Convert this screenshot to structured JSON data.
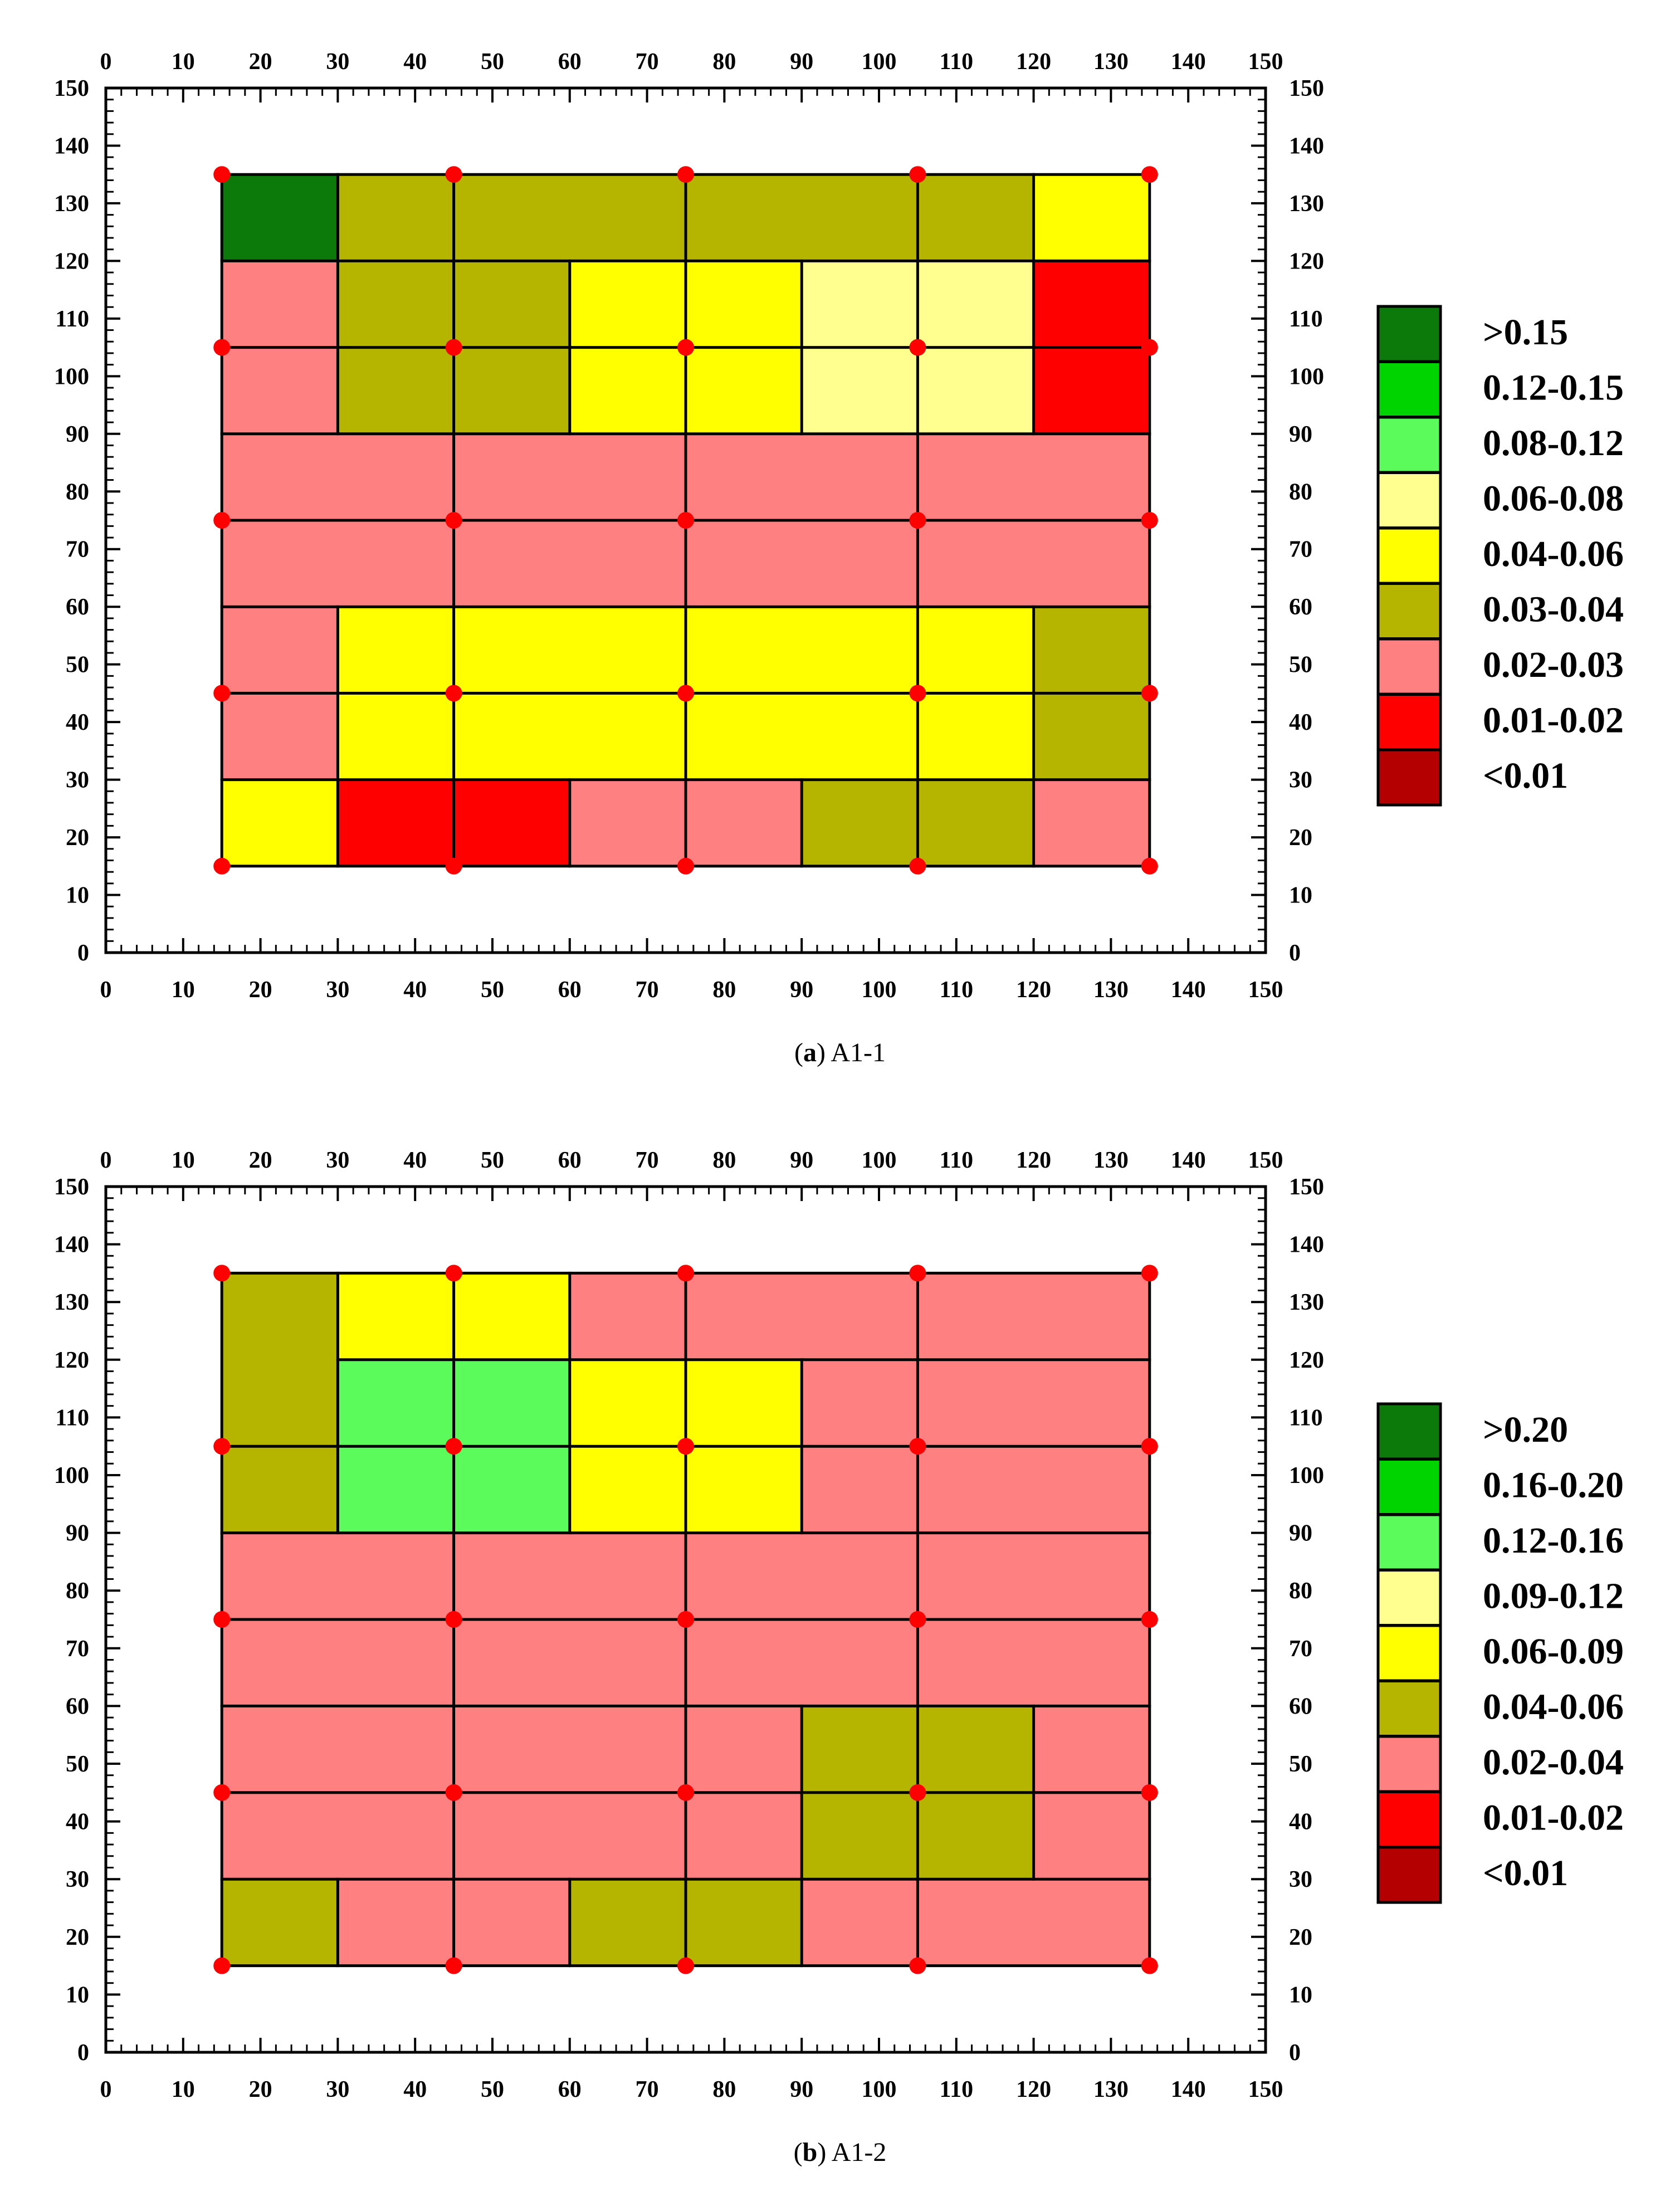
{
  "panels": [
    {
      "caption_letter": "a",
      "caption_text": "A1-1",
      "legend": [
        {
          "label": ">0.15",
          "color": "#0b7a0b"
        },
        {
          "label": "0.12-0.15",
          "color": "#00d400"
        },
        {
          "label": "0.08-0.12",
          "color": "#5cfb5c"
        },
        {
          "label": "0.06-0.08",
          "color": "#ffff8f"
        },
        {
          "label": "0.04-0.06",
          "color": "#ffff00"
        },
        {
          "label": "0.03-0.04",
          "color": "#b5b500"
        },
        {
          "label": "0.02-0.03",
          "color": "#ff8080"
        },
        {
          "label": "0.01-0.02",
          "color": "#ff0000"
        },
        {
          "label": "<0.01",
          "color": "#b40000"
        }
      ]
    },
    {
      "caption_letter": "b",
      "caption_text": "A1-2",
      "legend": [
        {
          "label": ">0.20",
          "color": "#0b7a0b"
        },
        {
          "label": "0.16-0.20",
          "color": "#00d400"
        },
        {
          "label": "0.12-0.16",
          "color": "#5cfb5c"
        },
        {
          "label": "0.09-0.12",
          "color": "#ffff8f"
        },
        {
          "label": "0.06-0.09",
          "color": "#ffff00"
        },
        {
          "label": "0.04-0.06",
          "color": "#b5b500"
        },
        {
          "label": "0.02-0.04",
          "color": "#ff8080"
        },
        {
          "label": "0.01-0.02",
          "color": "#ff0000"
        },
        {
          "label": "<0.01",
          "color": "#b40000"
        }
      ]
    }
  ],
  "chart_data": [
    {
      "type": "heatmap",
      "title": "",
      "xlim": [
        0,
        150
      ],
      "ylim": [
        0,
        150
      ],
      "x_ticks": [
        0,
        10,
        20,
        30,
        40,
        50,
        60,
        70,
        80,
        90,
        100,
        110,
        120,
        130,
        140,
        150
      ],
      "y_ticks": [
        0,
        10,
        20,
        30,
        40,
        50,
        60,
        70,
        80,
        90,
        100,
        110,
        120,
        130,
        140,
        150
      ],
      "axes_on_all_sides": true,
      "grid": false,
      "legend_position": "right",
      "points": [
        [
          15,
          135
        ],
        [
          45,
          135
        ],
        [
          75,
          135
        ],
        [
          105,
          135
        ],
        [
          135,
          135
        ],
        [
          15,
          105
        ],
        [
          45,
          105
        ],
        [
          75,
          105
        ],
        [
          105,
          105
        ],
        [
          135,
          105
        ],
        [
          15,
          75
        ],
        [
          45,
          75
        ],
        [
          75,
          75
        ],
        [
          105,
          75
        ],
        [
          135,
          75
        ],
        [
          15,
          45
        ],
        [
          45,
          45
        ],
        [
          75,
          45
        ],
        [
          105,
          45
        ],
        [
          135,
          45
        ],
        [
          15,
          15
        ],
        [
          45,
          15
        ],
        [
          75,
          15
        ],
        [
          105,
          15
        ],
        [
          135,
          15
        ]
      ],
      "cells": [
        {
          "x": [
            15,
            30
          ],
          "y": [
            120,
            135
          ],
          "class": ">0.15"
        },
        {
          "x": [
            30,
            120
          ],
          "y": [
            120,
            135
          ],
          "class": "0.03-0.04"
        },
        {
          "x": [
            120,
            135
          ],
          "y": [
            120,
            135
          ],
          "class": "0.04-0.06"
        },
        {
          "x": [
            15,
            30
          ],
          "y": [
            90,
            120
          ],
          "class": "0.02-0.03"
        },
        {
          "x": [
            30,
            60
          ],
          "y": [
            90,
            120
          ],
          "class": "0.03-0.04"
        },
        {
          "x": [
            60,
            90
          ],
          "y": [
            90,
            120
          ],
          "class": "0.04-0.06"
        },
        {
          "x": [
            90,
            120
          ],
          "y": [
            90,
            120
          ],
          "class": "0.06-0.08"
        },
        {
          "x": [
            120,
            135
          ],
          "y": [
            90,
            120
          ],
          "class": "0.01-0.02"
        },
        {
          "x": [
            15,
            135
          ],
          "y": [
            60,
            90
          ],
          "class": "0.02-0.03"
        },
        {
          "x": [
            15,
            30
          ],
          "y": [
            30,
            60
          ],
          "class": "0.02-0.03"
        },
        {
          "x": [
            30,
            120
          ],
          "y": [
            30,
            60
          ],
          "class": "0.04-0.06"
        },
        {
          "x": [
            120,
            135
          ],
          "y": [
            30,
            60
          ],
          "class": "0.03-0.04"
        },
        {
          "x": [
            15,
            30
          ],
          "y": [
            15,
            30
          ],
          "class": "0.04-0.06"
        },
        {
          "x": [
            30,
            60
          ],
          "y": [
            15,
            30
          ],
          "class": "0.01-0.02"
        },
        {
          "x": [
            60,
            90
          ],
          "y": [
            15,
            30
          ],
          "class": "0.02-0.03"
        },
        {
          "x": [
            90,
            120
          ],
          "y": [
            15,
            30
          ],
          "class": "0.03-0.04"
        },
        {
          "x": [
            120,
            135
          ],
          "y": [
            15,
            30
          ],
          "class": "0.02-0.03"
        }
      ],
      "dividers": [
        {
          "x": [
            15,
            135
          ],
          "y": [
            135,
            135
          ]
        },
        {
          "x": [
            15,
            135
          ],
          "y": [
            120,
            120
          ]
        },
        {
          "x": [
            15,
            135
          ],
          "y": [
            105,
            105
          ]
        },
        {
          "x": [
            15,
            135
          ],
          "y": [
            90,
            90
          ]
        },
        {
          "x": [
            15,
            135
          ],
          "y": [
            75,
            75
          ]
        },
        {
          "x": [
            15,
            135
          ],
          "y": [
            60,
            60
          ]
        },
        {
          "x": [
            15,
            135
          ],
          "y": [
            45,
            45
          ]
        },
        {
          "x": [
            15,
            135
          ],
          "y": [
            30,
            30
          ]
        },
        {
          "x": [
            15,
            135
          ],
          "y": [
            15,
            15
          ]
        },
        {
          "x": [
            15,
            15
          ],
          "y": [
            15,
            135
          ]
        },
        {
          "x": [
            135,
            135
          ],
          "y": [
            15,
            135
          ]
        },
        {
          "x": [
            45,
            45
          ],
          "y": [
            15,
            135
          ]
        },
        {
          "x": [
            75,
            75
          ],
          "y": [
            15,
            135
          ]
        },
        {
          "x": [
            105,
            105
          ],
          "y": [
            15,
            135
          ]
        },
        {
          "x": [
            30,
            30
          ],
          "y": [
            120,
            135
          ]
        },
        {
          "x": [
            120,
            120
          ],
          "y": [
            120,
            135
          ]
        },
        {
          "x": [
            30,
            30
          ],
          "y": [
            90,
            120
          ]
        },
        {
          "x": [
            60,
            60
          ],
          "y": [
            90,
            120
          ]
        },
        {
          "x": [
            90,
            90
          ],
          "y": [
            90,
            120
          ]
        },
        {
          "x": [
            120,
            120
          ],
          "y": [
            90,
            120
          ]
        },
        {
          "x": [
            30,
            30
          ],
          "y": [
            30,
            60
          ]
        },
        {
          "x": [
            120,
            120
          ],
          "y": [
            30,
            60
          ]
        },
        {
          "x": [
            30,
            30
          ],
          "y": [
            15,
            30
          ]
        },
        {
          "x": [
            60,
            60
          ],
          "y": [
            15,
            30
          ]
        },
        {
          "x": [
            90,
            90
          ],
          "y": [
            15,
            30
          ]
        },
        {
          "x": [
            120,
            120
          ],
          "y": [
            15,
            30
          ]
        }
      ]
    },
    {
      "type": "heatmap",
      "title": "",
      "xlim": [
        0,
        150
      ],
      "ylim": [
        0,
        150
      ],
      "x_ticks": [
        0,
        10,
        20,
        30,
        40,
        50,
        60,
        70,
        80,
        90,
        100,
        110,
        120,
        130,
        140,
        150
      ],
      "y_ticks": [
        0,
        10,
        20,
        30,
        40,
        50,
        60,
        70,
        80,
        90,
        100,
        110,
        120,
        130,
        140,
        150
      ],
      "axes_on_all_sides": true,
      "grid": false,
      "legend_position": "right",
      "points": [
        [
          15,
          135
        ],
        [
          45,
          135
        ],
        [
          75,
          135
        ],
        [
          105,
          135
        ],
        [
          135,
          135
        ],
        [
          15,
          105
        ],
        [
          45,
          105
        ],
        [
          75,
          105
        ],
        [
          105,
          105
        ],
        [
          135,
          105
        ],
        [
          15,
          75
        ],
        [
          45,
          75
        ],
        [
          75,
          75
        ],
        [
          105,
          75
        ],
        [
          135,
          75
        ],
        [
          15,
          45
        ],
        [
          45,
          45
        ],
        [
          75,
          45
        ],
        [
          105,
          45
        ],
        [
          135,
          45
        ],
        [
          15,
          15
        ],
        [
          45,
          15
        ],
        [
          75,
          15
        ],
        [
          105,
          15
        ],
        [
          135,
          15
        ]
      ],
      "cells": [
        {
          "x": [
            15,
            30
          ],
          "y": [
            90,
            135
          ],
          "class": "0.04-0.06"
        },
        {
          "x": [
            30,
            60
          ],
          "y": [
            120,
            135
          ],
          "class": "0.06-0.09"
        },
        {
          "x": [
            60,
            135
          ],
          "y": [
            120,
            135
          ],
          "class": "0.02-0.04"
        },
        {
          "x": [
            30,
            60
          ],
          "y": [
            90,
            120
          ],
          "class": "0.12-0.16"
        },
        {
          "x": [
            60,
            90
          ],
          "y": [
            90,
            120
          ],
          "class": "0.06-0.09"
        },
        {
          "x": [
            90,
            135
          ],
          "y": [
            90,
            120
          ],
          "class": "0.02-0.04"
        },
        {
          "x": [
            15,
            135
          ],
          "y": [
            60,
            90
          ],
          "class": "0.02-0.04"
        },
        {
          "x": [
            15,
            90
          ],
          "y": [
            30,
            60
          ],
          "class": "0.02-0.04"
        },
        {
          "x": [
            90,
            120
          ],
          "y": [
            30,
            60
          ],
          "class": "0.04-0.06"
        },
        {
          "x": [
            120,
            135
          ],
          "y": [
            30,
            60
          ],
          "class": "0.02-0.04"
        },
        {
          "x": [
            15,
            30
          ],
          "y": [
            15,
            30
          ],
          "class": "0.04-0.06"
        },
        {
          "x": [
            30,
            60
          ],
          "y": [
            15,
            30
          ],
          "class": "0.02-0.04"
        },
        {
          "x": [
            60,
            90
          ],
          "y": [
            15,
            30
          ],
          "class": "0.04-0.06"
        },
        {
          "x": [
            90,
            135
          ],
          "y": [
            15,
            30
          ],
          "class": "0.02-0.04"
        }
      ],
      "dividers": [
        {
          "x": [
            15,
            135
          ],
          "y": [
            135,
            135
          ]
        },
        {
          "x": [
            30,
            135
          ],
          "y": [
            120,
            120
          ]
        },
        {
          "x": [
            15,
            135
          ],
          "y": [
            105,
            105
          ]
        },
        {
          "x": [
            15,
            135
          ],
          "y": [
            90,
            90
          ]
        },
        {
          "x": [
            15,
            135
          ],
          "y": [
            75,
            75
          ]
        },
        {
          "x": [
            15,
            135
          ],
          "y": [
            60,
            60
          ]
        },
        {
          "x": [
            15,
            135
          ],
          "y": [
            45,
            45
          ]
        },
        {
          "x": [
            15,
            135
          ],
          "y": [
            30,
            30
          ]
        },
        {
          "x": [
            15,
            135
          ],
          "y": [
            15,
            15
          ]
        },
        {
          "x": [
            15,
            15
          ],
          "y": [
            15,
            135
          ]
        },
        {
          "x": [
            135,
            135
          ],
          "y": [
            15,
            135
          ]
        },
        {
          "x": [
            45,
            45
          ],
          "y": [
            15,
            135
          ]
        },
        {
          "x": [
            75,
            75
          ],
          "y": [
            15,
            135
          ]
        },
        {
          "x": [
            105,
            105
          ],
          "y": [
            15,
            135
          ]
        },
        {
          "x": [
            30,
            30
          ],
          "y": [
            90,
            135
          ]
        },
        {
          "x": [
            60,
            60
          ],
          "y": [
            90,
            135
          ]
        },
        {
          "x": [
            90,
            90
          ],
          "y": [
            90,
            120
          ]
        },
        {
          "x": [
            90,
            90
          ],
          "y": [
            30,
            60
          ]
        },
        {
          "x": [
            120,
            120
          ],
          "y": [
            30,
            60
          ]
        },
        {
          "x": [
            30,
            30
          ],
          "y": [
            15,
            30
          ]
        },
        {
          "x": [
            60,
            60
          ],
          "y": [
            15,
            30
          ]
        },
        {
          "x": [
            90,
            90
          ],
          "y": [
            15,
            30
          ]
        }
      ]
    }
  ]
}
